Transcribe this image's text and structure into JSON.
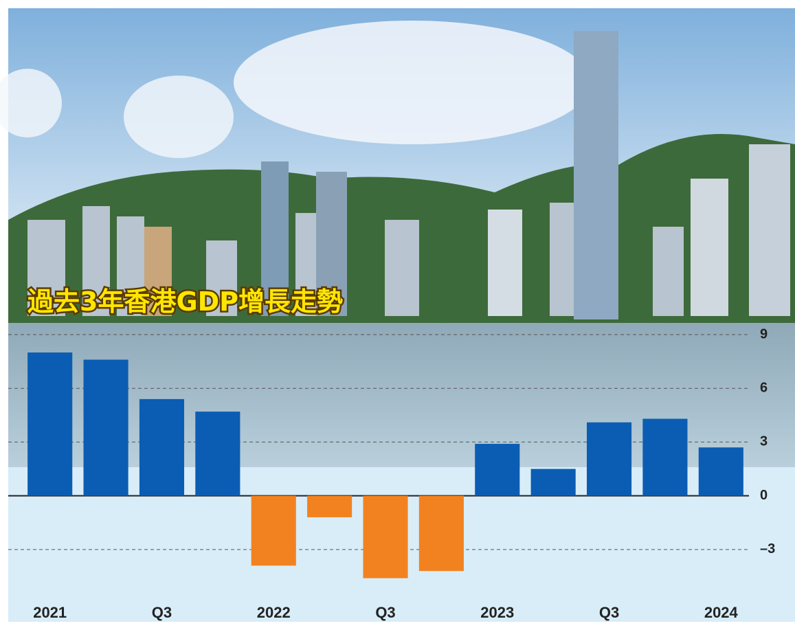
{
  "chart_data": {
    "type": "bar",
    "title": "過去3年香港GDP增長走勢",
    "categories": [
      "2021",
      null,
      "Q3",
      null,
      "2022",
      null,
      "Q3",
      null,
      "2023",
      null,
      "Q3",
      null,
      "2024"
    ],
    "values": [
      8.0,
      7.6,
      5.4,
      4.7,
      -3.9,
      -1.2,
      -4.6,
      -4.2,
      2.9,
      1.5,
      4.1,
      4.3,
      2.7
    ],
    "positive_color": "#0b5db3",
    "negative_color": "#f28220",
    "ylim": [
      -5,
      9
    ],
    "yticks": [
      9,
      6,
      3,
      0,
      {
        "value": -3,
        "label": "–3"
      }
    ],
    "grid": true
  }
}
